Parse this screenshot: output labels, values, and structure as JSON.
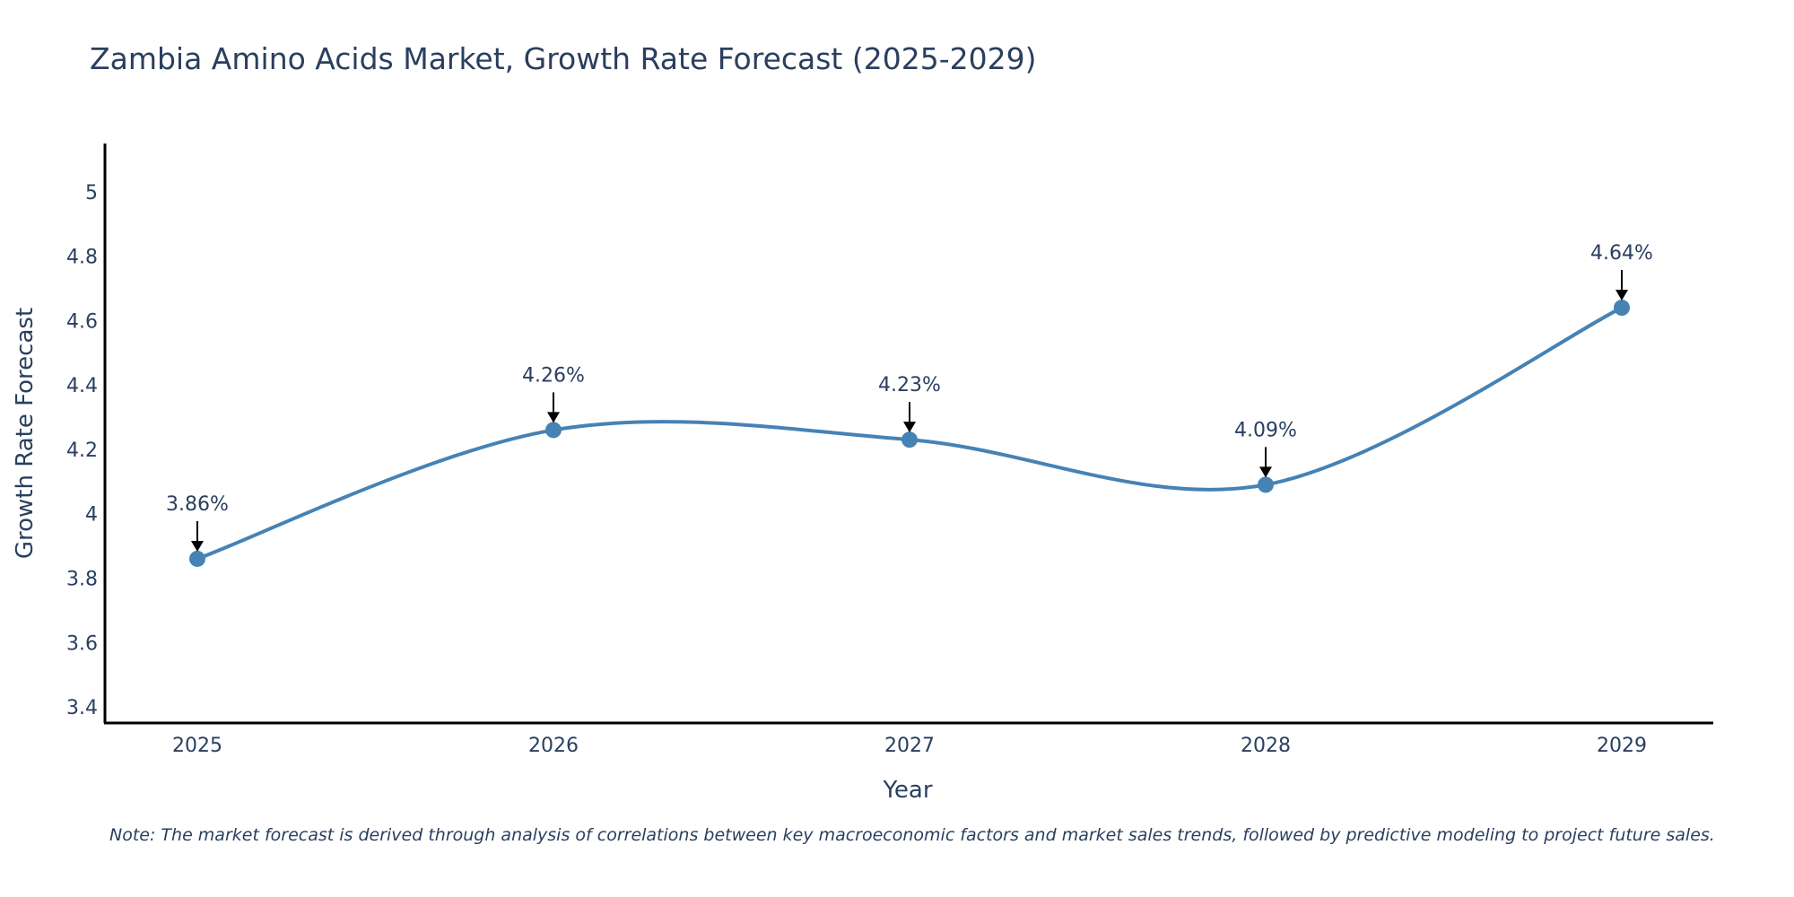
{
  "chart_data": {
    "type": "line",
    "title": "Zambia Amino Acids Market, Growth Rate Forecast (2025-2029)",
    "xlabel": "Year",
    "ylabel": "Growth Rate Forecast",
    "categories": [
      "2025",
      "2026",
      "2027",
      "2028",
      "2029"
    ],
    "series": [
      {
        "name": "Growth Rate Forecast",
        "values": [
          3.86,
          4.26,
          4.23,
          4.09,
          4.64
        ]
      }
    ],
    "data_labels": [
      "3.86%",
      "4.26%",
      "4.23%",
      "4.09%",
      "4.64%"
    ],
    "ylim": [
      3.35,
      5.15
    ],
    "yticks": [
      3.4,
      3.6,
      3.8,
      4,
      4.2,
      4.4,
      4.6,
      4.8,
      5
    ],
    "ytick_labels": [
      "3.4",
      "3.6",
      "3.8",
      "4",
      "4.2",
      "4.4",
      "4.6",
      "4.8",
      "5"
    ],
    "grid": false,
    "line_shape": "spline",
    "color": "#4682b4",
    "note": "Note: The market forecast is derived through analysis of correlations between key macroeconomic factors and market sales trends, followed by predictive modeling to project future sales."
  }
}
